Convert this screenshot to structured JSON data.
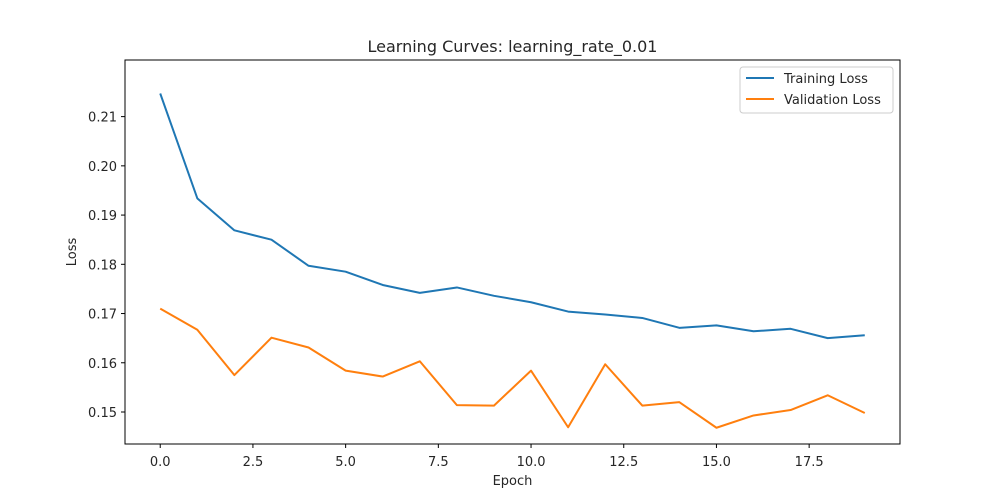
{
  "chart_data": {
    "type": "line",
    "title": "Learning Curves: learning_rate_0.01",
    "xlabel": "Epoch",
    "ylabel": "Loss",
    "xlim": [
      -0.95,
      19.95
    ],
    "ylim": [
      0.1435,
      0.2215
    ],
    "xticks": [
      0,
      2.5,
      5,
      7.5,
      10,
      12.5,
      15,
      17.5
    ],
    "xtick_labels": [
      "0.0",
      "2.5",
      "5.0",
      "7.5",
      "10.0",
      "12.5",
      "15.0",
      "17.5"
    ],
    "yticks": [
      0.15,
      0.16,
      0.17,
      0.18,
      0.19,
      0.2,
      0.21
    ],
    "ytick_labels": [
      "0.15",
      "0.16",
      "0.17",
      "0.18",
      "0.19",
      "0.20",
      "0.21"
    ],
    "grid": false,
    "legend_position": "top-right",
    "x": [
      0,
      1,
      2,
      3,
      4,
      5,
      6,
      7,
      8,
      9,
      10,
      11,
      12,
      13,
      14,
      15,
      16,
      17,
      18,
      19
    ],
    "series": [
      {
        "name": "Training Loss",
        "color": "#1f77b4",
        "values": [
          0.2147,
          0.1934,
          0.1869,
          0.185,
          0.1797,
          0.1785,
          0.1758,
          0.1742,
          0.1753,
          0.1736,
          0.1723,
          0.1704,
          0.1698,
          0.1691,
          0.1671,
          0.1676,
          0.1664,
          0.1669,
          0.165,
          0.1656
        ]
      },
      {
        "name": "Validation Loss",
        "color": "#ff7f0e",
        "values": [
          0.171,
          0.1667,
          0.1575,
          0.1651,
          0.1631,
          0.1584,
          0.1572,
          0.1603,
          0.1514,
          0.1513,
          0.1584,
          0.1469,
          0.1597,
          0.1513,
          0.152,
          0.1468,
          0.1493,
          0.1504,
          0.1534,
          0.1498
        ]
      }
    ]
  }
}
